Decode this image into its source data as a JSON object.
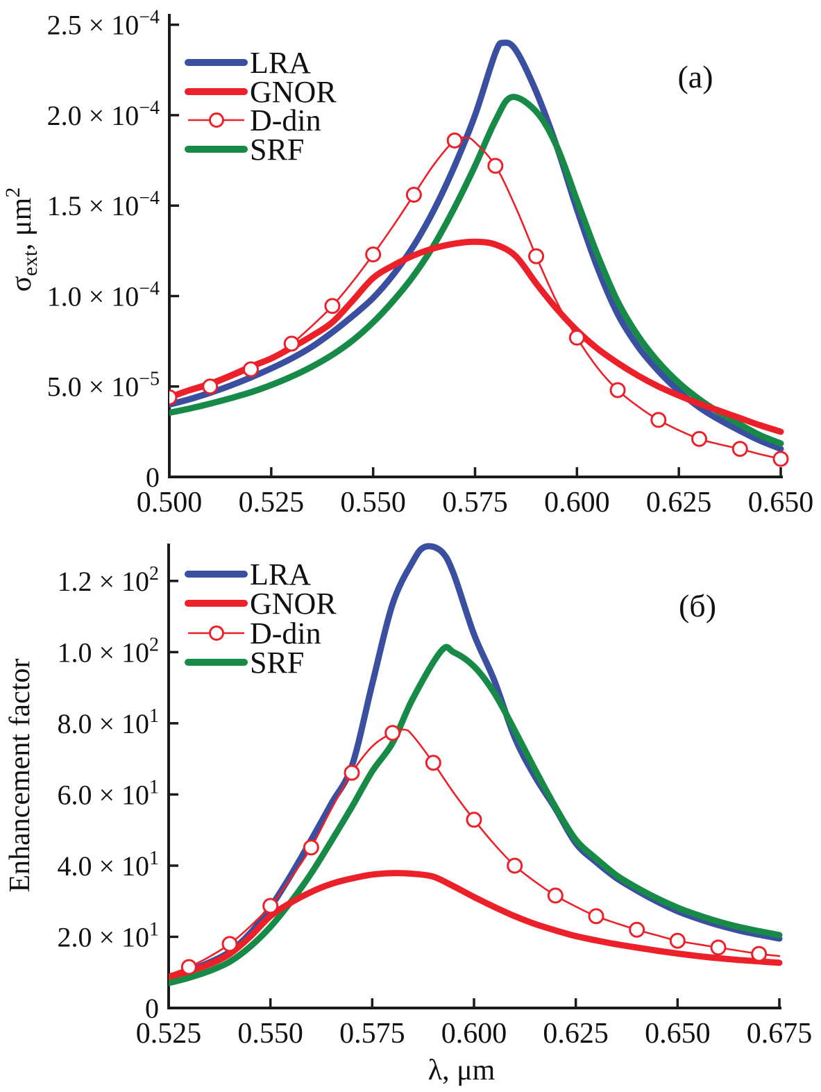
{
  "figure": {
    "panel_a_label": "(а)",
    "panel_b_label": "(б)"
  },
  "colors": {
    "lra": "#3b4fa1",
    "gnor": "#ec2028",
    "ddin": "#ec2028",
    "srf": "#168a46",
    "axis": "#1a1a1a",
    "marker_fill": "#ffffff"
  },
  "legend": {
    "items": [
      {
        "key": "lra",
        "label": "LRA",
        "style": "thick"
      },
      {
        "key": "gnor",
        "label": "GNOR",
        "style": "thick"
      },
      {
        "key": "ddin",
        "label": "D-din",
        "style": "thin-marker"
      },
      {
        "key": "srf",
        "label": "SRF",
        "style": "thick"
      }
    ]
  },
  "chart_data": [
    {
      "id": "a",
      "type": "line",
      "panel_label": "(а)",
      "ylabel_text": "σext, μm²",
      "ylabel_parts": [
        {
          "t": "σ"
        },
        {
          "sub": "ext"
        },
        {
          "t": ", μm"
        },
        {
          "sup": "2"
        }
      ],
      "xlabel": "",
      "y_unit": "10⁻⁴ μm²",
      "xlim": [
        0.5,
        0.65
      ],
      "ylim": [
        0,
        2.56
      ],
      "grid": false,
      "legend_position": "top-left-inside",
      "x_ticks": [
        {
          "v": 0.5,
          "t": "0.500"
        },
        {
          "v": 0.525,
          "t": "0.525"
        },
        {
          "v": 0.55,
          "t": "0.550"
        },
        {
          "v": 0.575,
          "t": "0.575"
        },
        {
          "v": 0.6,
          "t": "0.600"
        },
        {
          "v": 0.625,
          "t": "0.625"
        },
        {
          "v": 0.65,
          "t": "0.650"
        }
      ],
      "y_ticks": [
        {
          "v": 0,
          "t": "0",
          "sup": ""
        },
        {
          "v": 0.5,
          "t": "5.0 × 10",
          "sup": "−5"
        },
        {
          "v": 1.0,
          "t": "1.0 × 10",
          "sup": "−4"
        },
        {
          "v": 1.5,
          "t": "1.5 × 10",
          "sup": "−4"
        },
        {
          "v": 2.0,
          "t": "2.0 × 10",
          "sup": "−4"
        },
        {
          "v": 2.5,
          "t": "2.5 × 10",
          "sup": "−4"
        }
      ],
      "series": [
        {
          "key": "lra",
          "name": "LRA",
          "x": [
            0.5,
            0.505,
            0.51,
            0.515,
            0.52,
            0.525,
            0.53,
            0.535,
            0.54,
            0.545,
            0.55,
            0.555,
            0.56,
            0.565,
            0.57,
            0.575,
            0.58,
            0.582,
            0.585,
            0.59,
            0.595,
            0.6,
            0.605,
            0.61,
            0.615,
            0.62,
            0.625,
            0.63,
            0.635,
            0.64,
            0.645,
            0.65
          ],
          "y": [
            0.4,
            0.43,
            0.465,
            0.505,
            0.55,
            0.6,
            0.655,
            0.72,
            0.8,
            0.89,
            0.99,
            1.12,
            1.28,
            1.48,
            1.72,
            2.0,
            2.345,
            2.4,
            2.36,
            2.13,
            1.83,
            1.48,
            1.16,
            0.9,
            0.72,
            0.585,
            0.475,
            0.385,
            0.315,
            0.255,
            0.2,
            0.155
          ]
        },
        {
          "key": "gnor",
          "name": "GNOR",
          "x": [
            0.5,
            0.505,
            0.51,
            0.515,
            0.52,
            0.525,
            0.53,
            0.535,
            0.54,
            0.545,
            0.55,
            0.555,
            0.56,
            0.565,
            0.57,
            0.575,
            0.58,
            0.585,
            0.59,
            0.595,
            0.6,
            0.605,
            0.61,
            0.615,
            0.62,
            0.625,
            0.63,
            0.635,
            0.64,
            0.645,
            0.65
          ],
          "y": [
            0.44,
            0.48,
            0.515,
            0.56,
            0.61,
            0.655,
            0.715,
            0.78,
            0.855,
            0.975,
            1.1,
            1.17,
            1.225,
            1.265,
            1.29,
            1.3,
            1.285,
            1.22,
            1.07,
            0.93,
            0.81,
            0.71,
            0.63,
            0.56,
            0.5,
            0.45,
            0.405,
            0.365,
            0.325,
            0.285,
            0.25
          ],
          "note": "broad nonlocal peak ~1.30e-4 at 0.575 μm"
        },
        {
          "key": "ddin",
          "name": "D-din",
          "x": [
            0.5,
            0.505,
            0.51,
            0.515,
            0.52,
            0.525,
            0.53,
            0.535,
            0.54,
            0.545,
            0.55,
            0.555,
            0.56,
            0.565,
            0.57,
            0.573,
            0.575,
            0.58,
            0.585,
            0.59,
            0.595,
            0.6,
            0.605,
            0.61,
            0.615,
            0.62,
            0.625,
            0.63,
            0.635,
            0.64,
            0.645,
            0.65
          ],
          "y": [
            0.44,
            0.468,
            0.5,
            0.545,
            0.595,
            0.662,
            0.737,
            0.835,
            0.945,
            1.08,
            1.23,
            1.39,
            1.56,
            1.73,
            1.86,
            1.875,
            1.85,
            1.72,
            1.49,
            1.22,
            0.97,
            0.77,
            0.605,
            0.48,
            0.39,
            0.315,
            0.258,
            0.21,
            0.18,
            0.155,
            0.125,
            0.1
          ],
          "markers": {
            "x": [
              0.5,
              0.51,
              0.52,
              0.53,
              0.54,
              0.55,
              0.56,
              0.57,
              0.58,
              0.59,
              0.6,
              0.61,
              0.62,
              0.63,
              0.64,
              0.65
            ],
            "y": [
              0.44,
              0.5,
              0.595,
              0.737,
              0.945,
              1.23,
              1.56,
              1.86,
              1.72,
              1.22,
              0.77,
              0.48,
              0.315,
              0.21,
              0.155,
              0.1
            ]
          }
        },
        {
          "key": "srf",
          "name": "SRF",
          "x": [
            0.5,
            0.505,
            0.51,
            0.515,
            0.52,
            0.525,
            0.53,
            0.535,
            0.54,
            0.545,
            0.55,
            0.555,
            0.56,
            0.565,
            0.57,
            0.575,
            0.58,
            0.584,
            0.59,
            0.595,
            0.6,
            0.605,
            0.61,
            0.615,
            0.62,
            0.625,
            0.63,
            0.635,
            0.64,
            0.645,
            0.65
          ],
          "y": [
            0.355,
            0.378,
            0.405,
            0.435,
            0.468,
            0.508,
            0.555,
            0.61,
            0.675,
            0.755,
            0.855,
            0.975,
            1.115,
            1.285,
            1.49,
            1.72,
            1.97,
            2.1,
            2.02,
            1.83,
            1.53,
            1.23,
            0.97,
            0.78,
            0.635,
            0.52,
            0.43,
            0.355,
            0.29,
            0.23,
            0.185
          ]
        }
      ]
    },
    {
      "id": "b",
      "type": "line",
      "panel_label": "(б)",
      "ylabel_text": "Enhancement factor",
      "ylabel_parts": [
        {
          "t": "Enhancement factor"
        }
      ],
      "xlabel": "λ, μm",
      "y_unit": "dimensionless",
      "xlim": [
        0.525,
        0.675
      ],
      "ylim": [
        0,
        130.5
      ],
      "grid": false,
      "legend_position": "top-left-inside",
      "x_ticks": [
        {
          "v": 0.525,
          "t": "0.525"
        },
        {
          "v": 0.55,
          "t": "0.550"
        },
        {
          "v": 0.575,
          "t": "0.575"
        },
        {
          "v": 0.6,
          "t": "0.600"
        },
        {
          "v": 0.625,
          "t": "0.625"
        },
        {
          "v": 0.65,
          "t": "0.650"
        },
        {
          "v": 0.675,
          "t": "0.675"
        }
      ],
      "y_ticks": [
        {
          "v": 0,
          "t": "0",
          "sup": ""
        },
        {
          "v": 20,
          "t": "2.0 × 10",
          "sup": "1"
        },
        {
          "v": 40,
          "t": "4.0 × 10",
          "sup": "1"
        },
        {
          "v": 60,
          "t": "6.0 × 10",
          "sup": "1"
        },
        {
          "v": 80,
          "t": "8.0 × 10",
          "sup": "1"
        },
        {
          "v": 100,
          "t": "1.0 × 10",
          "sup": "2"
        },
        {
          "v": 120,
          "t": "1.2 × 10",
          "sup": "2"
        }
      ],
      "series": [
        {
          "key": "lra",
          "name": "LRA",
          "x": [
            0.525,
            0.53,
            0.535,
            0.54,
            0.545,
            0.55,
            0.555,
            0.56,
            0.565,
            0.57,
            0.575,
            0.58,
            0.585,
            0.588,
            0.592,
            0.595,
            0.6,
            0.605,
            0.61,
            0.615,
            0.62,
            0.625,
            0.63,
            0.635,
            0.64,
            0.645,
            0.65,
            0.655,
            0.66,
            0.665,
            0.67,
            0.675
          ],
          "y": [
            8.8,
            10.5,
            12.8,
            15.8,
            21.0,
            28.3,
            37.3,
            47.2,
            57.5,
            68.0,
            91.0,
            113.5,
            125.5,
            129.6,
            128.3,
            122.0,
            105.0,
            92.0,
            76.0,
            65.0,
            56.0,
            46.3,
            41.0,
            36.5,
            33.0,
            29.9,
            27.2,
            25.1,
            23.3,
            21.8,
            20.6,
            19.5
          ]
        },
        {
          "key": "gnor",
          "name": "GNOR",
          "x": [
            0.525,
            0.53,
            0.535,
            0.54,
            0.545,
            0.55,
            0.555,
            0.56,
            0.565,
            0.57,
            0.575,
            0.58,
            0.585,
            0.59,
            0.595,
            0.6,
            0.605,
            0.61,
            0.615,
            0.62,
            0.625,
            0.63,
            0.635,
            0.64,
            0.645,
            0.65,
            0.655,
            0.66,
            0.665,
            0.67,
            0.675
          ],
          "y": [
            8.8,
            10.3,
            12.3,
            15.2,
            20.0,
            25.8,
            29.6,
            32.6,
            34.9,
            36.4,
            37.5,
            37.9,
            37.7,
            36.9,
            34.2,
            31.2,
            28.4,
            25.8,
            23.6,
            21.8,
            20.2,
            19.0,
            17.9,
            17.0,
            16.1,
            15.3,
            14.6,
            14.0,
            13.5,
            13.1,
            12.7
          ],
          "note": "broad low peak ~37.9 at 0.581 μm"
        },
        {
          "key": "ddin",
          "name": "D-din",
          "x": [
            0.525,
            0.53,
            0.535,
            0.54,
            0.545,
            0.55,
            0.555,
            0.56,
            0.565,
            0.57,
            0.575,
            0.58,
            0.583,
            0.585,
            0.59,
            0.595,
            0.6,
            0.605,
            0.61,
            0.615,
            0.62,
            0.625,
            0.63,
            0.635,
            0.64,
            0.645,
            0.65,
            0.655,
            0.66,
            0.665,
            0.67,
            0.675
          ],
          "y": [
            9.3,
            11.5,
            14.4,
            18.0,
            22.9,
            28.7,
            36.5,
            45.1,
            56.0,
            66.1,
            73.5,
            77.3,
            78.2,
            76.5,
            68.9,
            60.5,
            52.9,
            46.0,
            40.0,
            35.5,
            31.6,
            28.5,
            25.8,
            23.8,
            22.0,
            20.4,
            18.9,
            17.9,
            17.0,
            16.1,
            15.2,
            14.6
          ],
          "markers": {
            "x": [
              0.53,
              0.54,
              0.55,
              0.56,
              0.57,
              0.58,
              0.59,
              0.6,
              0.61,
              0.62,
              0.63,
              0.64,
              0.65,
              0.66,
              0.67
            ],
            "y": [
              11.5,
              18.0,
              28.7,
              45.1,
              66.1,
              77.3,
              68.9,
              52.9,
              40.0,
              31.6,
              25.8,
              22.0,
              18.9,
              17.0,
              15.2
            ]
          }
        },
        {
          "key": "srf",
          "name": "SRF",
          "x": [
            0.525,
            0.53,
            0.535,
            0.54,
            0.545,
            0.55,
            0.555,
            0.56,
            0.565,
            0.57,
            0.575,
            0.58,
            0.585,
            0.592,
            0.595,
            0.6,
            0.605,
            0.61,
            0.615,
            0.62,
            0.625,
            0.63,
            0.635,
            0.64,
            0.645,
            0.65,
            0.655,
            0.66,
            0.665,
            0.67,
            0.675
          ],
          "y": [
            7.0,
            8.5,
            10.4,
            13.0,
            17.2,
            22.8,
            29.8,
            37.8,
            47.0,
            56.5,
            66.5,
            74.5,
            87.0,
            100.4,
            100.0,
            96.0,
            88.5,
            78.0,
            67.0,
            56.5,
            47.3,
            42.0,
            37.3,
            33.8,
            30.8,
            28.2,
            26.1,
            24.3,
            22.8,
            21.6,
            20.5
          ]
        }
      ]
    }
  ]
}
